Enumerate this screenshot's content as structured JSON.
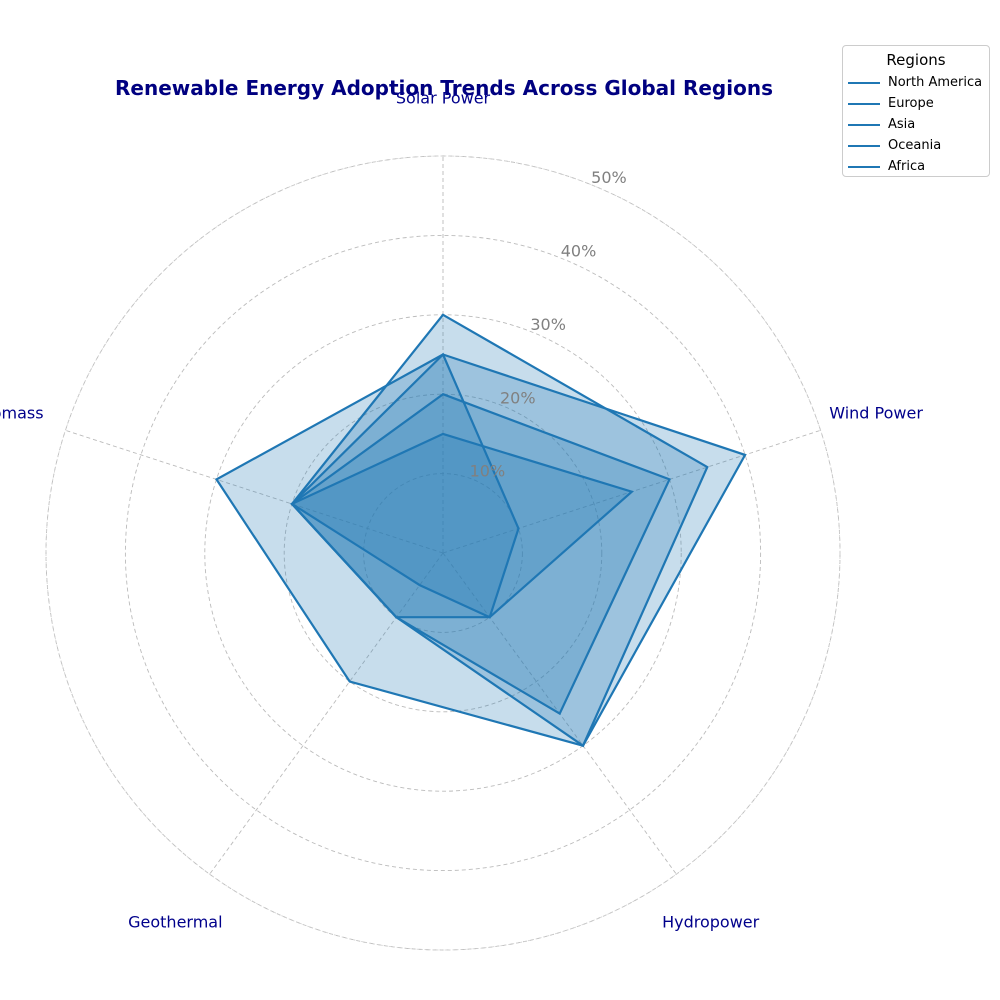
{
  "chart_data": {
    "type": "radar",
    "title": "Renewable Energy Adoption Trends Across Global Regions",
    "categories": [
      "Solar Power",
      "Wind Power",
      "Hydropower",
      "Geothermal",
      "Biomass"
    ],
    "r_ticks": [
      "10%",
      "20%",
      "30%",
      "40%",
      "50%"
    ],
    "r_tick_values": [
      10,
      20,
      30,
      40,
      50
    ],
    "rlim": [
      0,
      50
    ],
    "grid": true,
    "legend": {
      "title": "Regions",
      "placement": "top-right"
    },
    "series": [
      {
        "name": "North America",
        "values": [
          25,
          40,
          30,
          20,
          30
        ]
      },
      {
        "name": "Europe",
        "values": [
          30,
          35,
          30,
          10,
          20
        ]
      },
      {
        "name": "Asia",
        "values": [
          20,
          30,
          25,
          10,
          20
        ]
      },
      {
        "name": "Oceania",
        "values": [
          15,
          25,
          10,
          5,
          20
        ]
      },
      {
        "name": "Africa",
        "values": [
          25,
          10,
          10,
          10,
          20
        ]
      }
    ],
    "line_color": "#1f77b4",
    "fill_color": "#1f77b4",
    "label_color": "#00008b",
    "tick_label_color": "#808080"
  }
}
